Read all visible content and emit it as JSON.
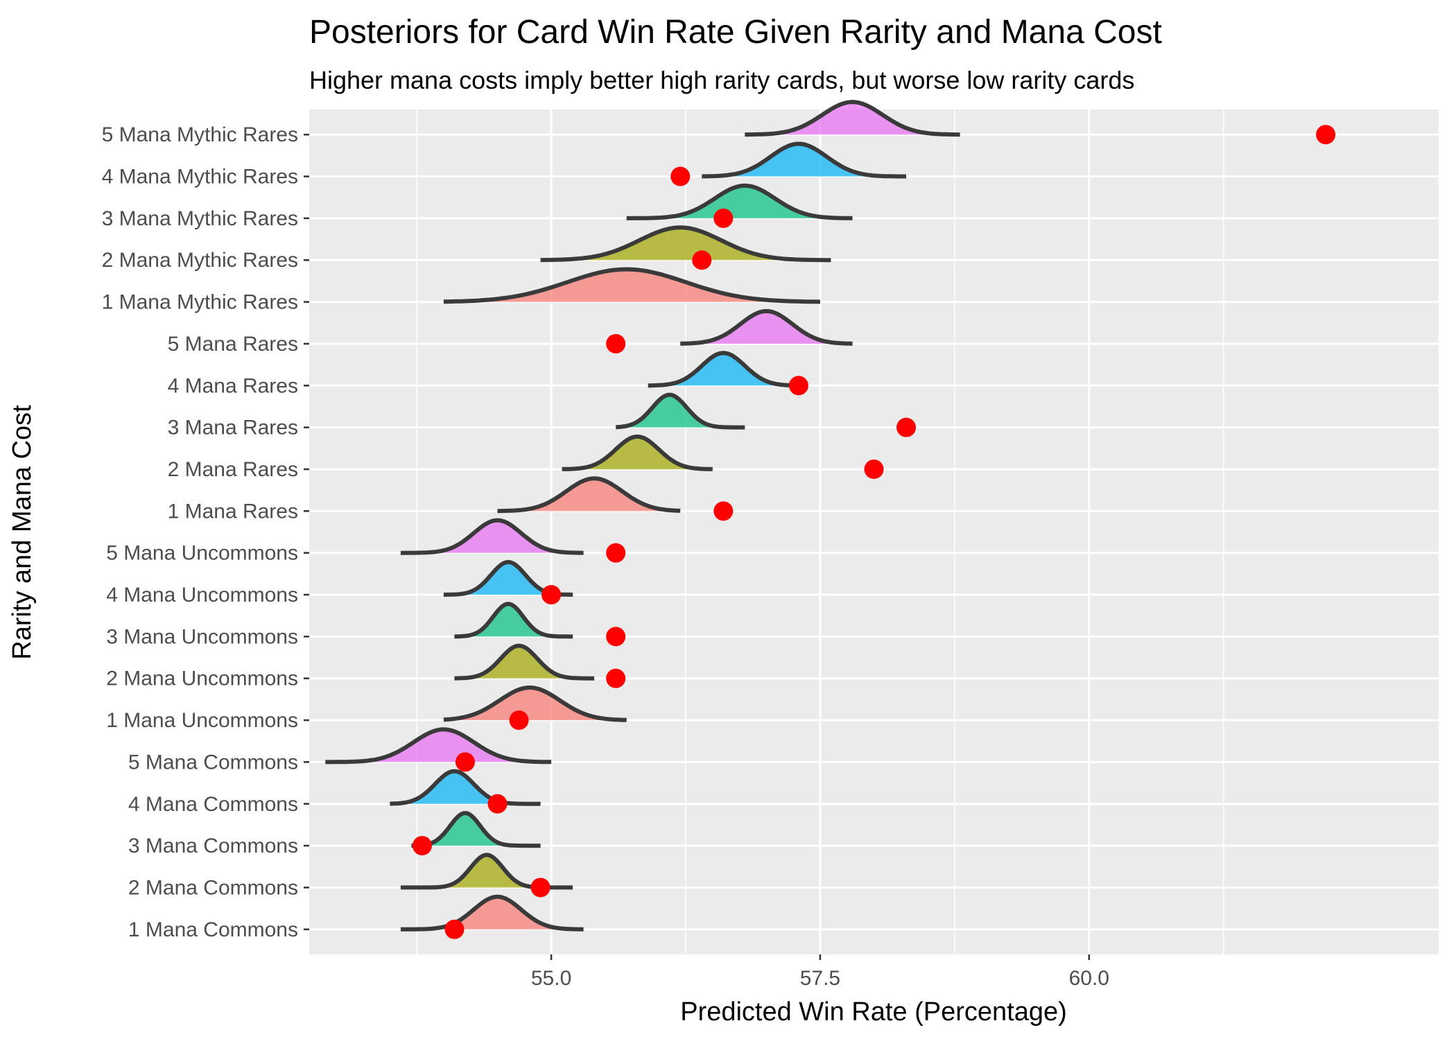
{
  "chart_data": {
    "type": "ridgeline",
    "title": "Posteriors for Card Win Rate Given Rarity and Mana Cost",
    "subtitle": "Higher mana costs imply better high rarity cards, but worse low rarity cards",
    "xlabel": "Predicted Win Rate (Percentage)",
    "ylabel": "Rarity and Mana Cost",
    "xlim": [
      52.75,
      63.25
    ],
    "xticks": [
      "55.0",
      "57.5",
      "60.0"
    ],
    "xtick_values": [
      55.0,
      57.5,
      60.0
    ],
    "grid": true,
    "legend": "none",
    "mana_colors": {
      "1": "#F8766D",
      "2": "#A3A500",
      "3": "#00BF7D",
      "4": "#00B0F6",
      "5": "#E76BF3"
    },
    "point_color": "#FF0000",
    "categories": [
      {
        "label": "1 Mana Commons",
        "mana": 1,
        "peak": 54.5,
        "min": 53.6,
        "max": 55.3,
        "sd": 0.22,
        "observed": 54.1
      },
      {
        "label": "2 Mana Commons",
        "mana": 2,
        "peak": 54.4,
        "min": 53.6,
        "max": 55.2,
        "sd": 0.15,
        "observed": 54.9
      },
      {
        "label": "3 Mana Commons",
        "mana": 3,
        "peak": 54.2,
        "min": 53.7,
        "max": 54.9,
        "sd": 0.14,
        "observed": 53.8
      },
      {
        "label": "4 Mana Commons",
        "mana": 4,
        "peak": 54.1,
        "min": 53.5,
        "max": 54.9,
        "sd": 0.18,
        "observed": 54.5
      },
      {
        "label": "5 Mana Commons",
        "mana": 5,
        "peak": 54.0,
        "min": 52.9,
        "max": 55.0,
        "sd": 0.28,
        "observed": 54.2
      },
      {
        "label": "1 Mana Uncommons",
        "mana": 1,
        "peak": 54.8,
        "min": 54.0,
        "max": 55.7,
        "sd": 0.28,
        "observed": 54.7
      },
      {
        "label": "2 Mana Uncommons",
        "mana": 2,
        "peak": 54.7,
        "min": 54.1,
        "max": 55.4,
        "sd": 0.17,
        "observed": 55.6
      },
      {
        "label": "3 Mana Uncommons",
        "mana": 3,
        "peak": 54.6,
        "min": 54.1,
        "max": 55.2,
        "sd": 0.14,
        "observed": 55.6
      },
      {
        "label": "4 Mana Uncommons",
        "mana": 4,
        "peak": 54.6,
        "min": 54.0,
        "max": 55.2,
        "sd": 0.16,
        "observed": 55.0
      },
      {
        "label": "5 Mana Uncommons",
        "mana": 5,
        "peak": 54.5,
        "min": 53.6,
        "max": 55.3,
        "sd": 0.22,
        "observed": 55.6
      },
      {
        "label": "1 Mana Rares",
        "mana": 1,
        "peak": 55.4,
        "min": 54.5,
        "max": 56.2,
        "sd": 0.26,
        "observed": 56.6
      },
      {
        "label": "2 Mana Rares",
        "mana": 2,
        "peak": 55.8,
        "min": 55.1,
        "max": 56.5,
        "sd": 0.2,
        "observed": 58.0
      },
      {
        "label": "3 Mana Rares",
        "mana": 3,
        "peak": 56.1,
        "min": 55.6,
        "max": 56.8,
        "sd": 0.16,
        "observed": 58.3
      },
      {
        "label": "4 Mana Rares",
        "mana": 4,
        "peak": 56.6,
        "min": 55.9,
        "max": 57.3,
        "sd": 0.2,
        "observed": 57.3
      },
      {
        "label": "5 Mana Rares",
        "mana": 5,
        "peak": 57.0,
        "min": 56.2,
        "max": 57.8,
        "sd": 0.24,
        "observed": 55.6
      },
      {
        "label": "1 Mana Mythic Rares",
        "mana": 1,
        "peak": 55.7,
        "min": 54.0,
        "max": 57.5,
        "sd": 0.55,
        "observed": null
      },
      {
        "label": "2 Mana Mythic Rares",
        "mana": 2,
        "peak": 56.2,
        "min": 54.9,
        "max": 57.6,
        "sd": 0.38,
        "observed": 56.4
      },
      {
        "label": "3 Mana Mythic Rares",
        "mana": 3,
        "peak": 56.8,
        "min": 55.7,
        "max": 57.8,
        "sd": 0.28,
        "observed": 56.6
      },
      {
        "label": "4 Mana Mythic Rares",
        "mana": 4,
        "peak": 57.3,
        "min": 56.4,
        "max": 58.3,
        "sd": 0.26,
        "observed": 56.2
      },
      {
        "label": "5 Mana Mythic Rares",
        "mana": 5,
        "peak": 57.8,
        "min": 56.8,
        "max": 58.8,
        "sd": 0.28,
        "observed": 62.2
      }
    ]
  }
}
